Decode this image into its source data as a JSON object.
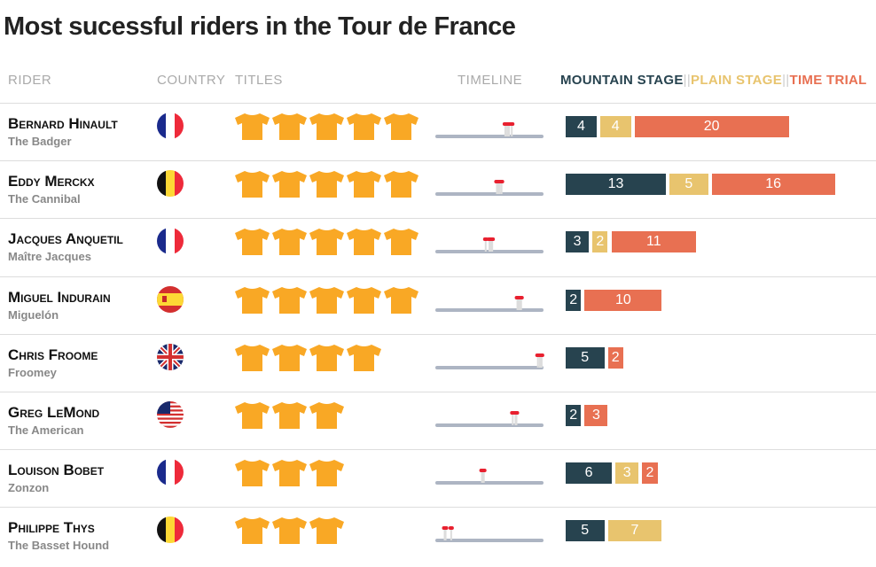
{
  "title": "Most sucessful riders in the Tour de France",
  "headers": {
    "rider": "RIDER",
    "country": "COUNTRY",
    "titles": "TITLES",
    "timeline": "TIMELINE"
  },
  "legend": {
    "mountain": "MOUNTAIN STAGE",
    "plain": "PLAIN STAGE",
    "tt": "TIME TRIAL",
    "sep": "||"
  },
  "colors": {
    "mountain": "#27434f",
    "plain": "#e8c46e",
    "tt": "#e87052",
    "jersey": "#f9a825",
    "timeline": "#adb5c3",
    "marker": "#e8202f"
  },
  "chart_data": {
    "type": "bar",
    "timeline_range": [
      1903,
      2019
    ],
    "riders": [
      {
        "name": "Bernard Hinault",
        "nick": "The Badger",
        "country": "fr",
        "titles": 5,
        "years": [
          1978,
          1979,
          1981,
          1982,
          1985
        ],
        "mountain": 4,
        "plain": 4,
        "tt": 20
      },
      {
        "name": "Eddy Merckx",
        "nick": "The Cannibal",
        "country": "be",
        "titles": 5,
        "years": [
          1969,
          1970,
          1971,
          1972,
          1974
        ],
        "mountain": 13,
        "plain": 5,
        "tt": 16
      },
      {
        "name": "Jacques Anquetil",
        "nick": "Maître Jacques",
        "country": "fr",
        "titles": 5,
        "years": [
          1957,
          1961,
          1962,
          1963,
          1964
        ],
        "mountain": 3,
        "plain": 2,
        "tt": 11
      },
      {
        "name": "Miguel Indurain",
        "nick": "Miguelón",
        "country": "es",
        "titles": 5,
        "years": [
          1991,
          1992,
          1993,
          1994,
          1995
        ],
        "mountain": 2,
        "plain": 0,
        "tt": 10
      },
      {
        "name": "Chris Froome",
        "nick": "Froomey",
        "country": "gb",
        "titles": 4,
        "years": [
          2013,
          2015,
          2016,
          2017
        ],
        "mountain": 5,
        "plain": 0,
        "tt": 2
      },
      {
        "name": "Greg LeMond",
        "nick": "The American",
        "country": "us",
        "titles": 3,
        "years": [
          1986,
          1989,
          1990
        ],
        "mountain": 2,
        "plain": 0,
        "tt": 3
      },
      {
        "name": "Louison Bobet",
        "nick": "Zonzon",
        "country": "fr",
        "titles": 3,
        "years": [
          1953,
          1954,
          1955
        ],
        "mountain": 6,
        "plain": 3,
        "tt": 2
      },
      {
        "name": "Philippe Thys",
        "nick": "The Basset Hound",
        "country": "be",
        "titles": 3,
        "years": [
          1913,
          1914,
          1920
        ],
        "mountain": 5,
        "plain": 7,
        "tt": 0
      }
    ]
  }
}
